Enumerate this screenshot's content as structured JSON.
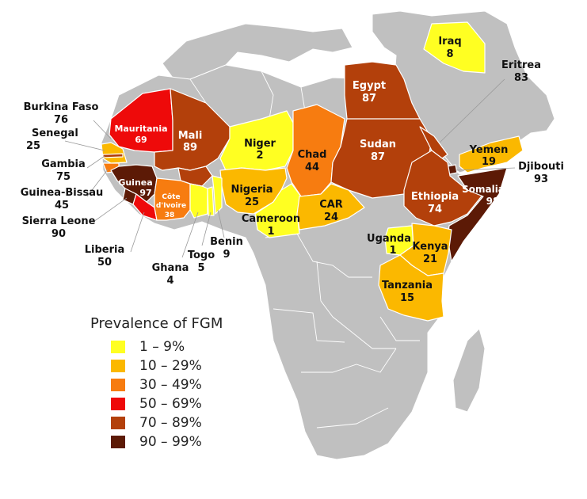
{
  "palette": {
    "band_1_9": "#ffff22",
    "band_10_29": "#fbb800",
    "band_30_49": "#f77c10",
    "band_50_69": "#ee0a0a",
    "band_70_89": "#b3400b",
    "band_90_99": "#5c1a06",
    "no_data": "#c0c0c0"
  },
  "countries": {
    "mauritania": {
      "name": "Mauritania",
      "value": "69"
    },
    "mali": {
      "name": "Mali",
      "value": "89"
    },
    "niger": {
      "name": "Niger",
      "value": "2"
    },
    "chad": {
      "name": "Chad",
      "value": "44"
    },
    "egypt": {
      "name": "Egypt",
      "value": "87"
    },
    "sudan": {
      "name": "Sudan",
      "value": "87"
    },
    "iraq": {
      "name": "Iraq",
      "value": "8"
    },
    "eritrea": {
      "name": "Eritrea",
      "value": "83"
    },
    "yemen": {
      "name": "Yemen",
      "value": "19"
    },
    "djibouti": {
      "name": "Djibouti",
      "value": "93"
    },
    "ethiopia": {
      "name": "Ethiopia",
      "value": "74"
    },
    "somalia": {
      "name": "Somalia",
      "value": "98"
    },
    "nigeria": {
      "name": "Nigeria",
      "value": "25"
    },
    "cameroon": {
      "name": "Cameroon",
      "value": "1"
    },
    "car": {
      "name": "CAR",
      "value": "24"
    },
    "uganda": {
      "name": "Uganda",
      "value": "1"
    },
    "kenya": {
      "name": "Kenya",
      "value": "21"
    },
    "tanzania": {
      "name": "Tanzania",
      "value": "15"
    },
    "guinea": {
      "name": "Guinea",
      "value": "97"
    },
    "cote_divoire": {
      "name_line1": "Côte",
      "name_line2": "d'Ivoire",
      "value": "38"
    },
    "burkina_faso": {
      "name": "Burkina Faso",
      "value": "76"
    },
    "senegal": {
      "name": "Senegal",
      "value": "25"
    },
    "gambia": {
      "name": "Gambia",
      "value": "75"
    },
    "guinea_bissau": {
      "name": "Guinea-Bissau",
      "value": "45"
    },
    "sierra_leone": {
      "name": "Sierra Leone",
      "value": "90"
    },
    "liberia": {
      "name": "Liberia",
      "value": "50"
    },
    "ghana": {
      "name": "Ghana",
      "value": "4"
    },
    "togo": {
      "name": "Togo",
      "value": "5"
    },
    "benin": {
      "name": "Benin",
      "value": "9"
    }
  },
  "legend": {
    "title": "Prevalence of FGM",
    "items": [
      {
        "label": "1 – 9%",
        "color": "#ffff22"
      },
      {
        "label": "10 – 29%",
        "color": "#fbb800"
      },
      {
        "label": "30 – 49%",
        "color": "#f77c10"
      },
      {
        "label": "50 – 69%",
        "color": "#ee0a0a"
      },
      {
        "label": "70 – 89%",
        "color": "#b3400b"
      },
      {
        "label": "90 – 99%",
        "color": "#5c1a06"
      }
    ]
  }
}
